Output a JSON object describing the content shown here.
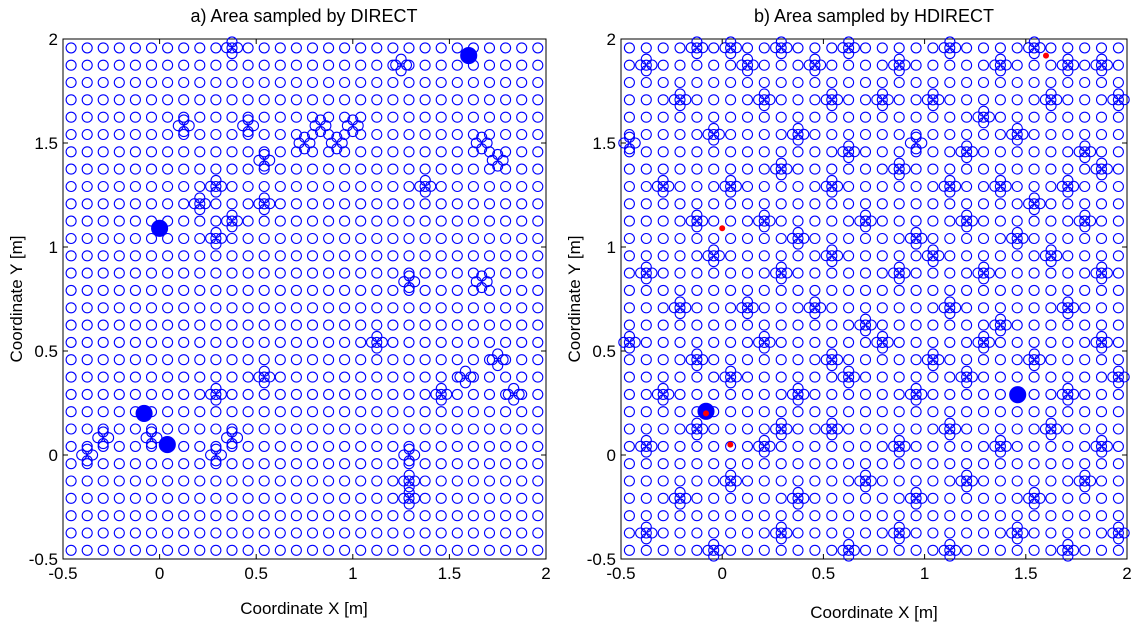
{
  "chart_data": [
    {
      "type": "scatter",
      "title": "a) Area sampled by DIRECT",
      "xlabel": "Coordinate X [m]",
      "ylabel": "Coordinate Y [m]",
      "xlim": [
        -0.5,
        2
      ],
      "ylim": [
        -0.5,
        2
      ],
      "xticks": [
        "-0.5",
        "0",
        "0.5",
        "1",
        "1.5",
        "2"
      ],
      "yticks": [
        "-0.5",
        "0",
        "0.5",
        "1",
        "1.5",
        "2"
      ],
      "marker": "circle",
      "marker_color": "#0000ff",
      "grid": {
        "x0": -0.4583,
        "dx": 0.0833,
        "nx": 30,
        "y0": -0.4583,
        "dy": 0.0833,
        "ny": 30
      },
      "refinements": [
        {
          "x": 0.375,
          "y": 1.958
        },
        {
          "x": 1.25,
          "y": 1.875
        },
        {
          "x": 0.125,
          "y": 1.583
        },
        {
          "x": 0.458,
          "y": 1.583
        },
        {
          "x": 0.833,
          "y": 1.583
        },
        {
          "x": 1.0,
          "y": 1.583
        },
        {
          "x": 0.75,
          "y": 1.5
        },
        {
          "x": 0.917,
          "y": 1.5
        },
        {
          "x": 1.667,
          "y": 1.5
        },
        {
          "x": 0.542,
          "y": 1.417
        },
        {
          "x": 1.75,
          "y": 1.417
        },
        {
          "x": 0.292,
          "y": 1.292
        },
        {
          "x": 1.375,
          "y": 1.292
        },
        {
          "x": 0.208,
          "y": 1.208
        },
        {
          "x": 0.542,
          "y": 1.208
        },
        {
          "x": 0.375,
          "y": 1.125
        },
        {
          "x": 0.292,
          "y": 1.042
        },
        {
          "x": 1.292,
          "y": 0.833
        },
        {
          "x": 1.667,
          "y": 0.833
        },
        {
          "x": 1.125,
          "y": 0.542
        },
        {
          "x": 1.75,
          "y": 0.458
        },
        {
          "x": 0.542,
          "y": 0.375
        },
        {
          "x": 1.583,
          "y": 0.375
        },
        {
          "x": 0.292,
          "y": 0.292
        },
        {
          "x": 1.458,
          "y": 0.292
        },
        {
          "x": 1.833,
          "y": 0.292
        },
        {
          "x": -0.292,
          "y": 0.083
        },
        {
          "x": 0.375,
          "y": 0.083
        },
        {
          "x": -0.042,
          "y": 0.083
        },
        {
          "x": -0.375,
          "y": 0.0
        },
        {
          "x": 0.292,
          "y": 0.0
        },
        {
          "x": 1.292,
          "y": 0.0
        },
        {
          "x": 1.292,
          "y": -0.125
        },
        {
          "x": 1.292,
          "y": -0.208
        }
      ],
      "clusters": [
        {
          "x": 1.6,
          "y": 1.92
        },
        {
          "x": 0.0,
          "y": 1.09
        },
        {
          "x": -0.08,
          "y": 0.2
        },
        {
          "x": 0.04,
          "y": 0.05
        }
      ],
      "best_points": []
    },
    {
      "type": "scatter",
      "title": "b) Area sampled by HDIRECT",
      "xlabel": "Coordinate X [m]",
      "ylabel": "Coordinate Y [m]",
      "xlim": [
        -0.5,
        2
      ],
      "ylim": [
        -0.5,
        2
      ],
      "xticks": [
        "-0.5",
        "0",
        "0.5",
        "1",
        "1.5",
        "2"
      ],
      "yticks": [
        "-0.5",
        "0",
        "0.5",
        "1",
        "1.5",
        "2"
      ],
      "marker": "circle",
      "marker_color": "#0000ff",
      "grid": {
        "x0": -0.4583,
        "dx": 0.0833,
        "nx": 30,
        "y0": -0.4583,
        "dy": 0.0833,
        "ny": 30
      },
      "refinements": [
        {
          "x": -0.375,
          "y": 1.875
        },
        {
          "x": -0.125,
          "y": 1.958
        },
        {
          "x": 0.042,
          "y": 1.958
        },
        {
          "x": 0.125,
          "y": 1.875
        },
        {
          "x": 0.292,
          "y": 1.958
        },
        {
          "x": 0.458,
          "y": 1.875
        },
        {
          "x": 0.625,
          "y": 1.958
        },
        {
          "x": 0.875,
          "y": 1.875
        },
        {
          "x": 1.125,
          "y": 1.958
        },
        {
          "x": 1.375,
          "y": 1.875
        },
        {
          "x": 1.542,
          "y": 1.958
        },
        {
          "x": 1.708,
          "y": 1.875
        },
        {
          "x": 1.875,
          "y": 1.875
        },
        {
          "x": -0.208,
          "y": 1.708
        },
        {
          "x": 0.208,
          "y": 1.708
        },
        {
          "x": 0.542,
          "y": 1.708
        },
        {
          "x": 0.792,
          "y": 1.708
        },
        {
          "x": 1.042,
          "y": 1.708
        },
        {
          "x": 1.292,
          "y": 1.625
        },
        {
          "x": 1.625,
          "y": 1.708
        },
        {
          "x": 1.958,
          "y": 1.708
        },
        {
          "x": -0.458,
          "y": 1.5
        },
        {
          "x": -0.042,
          "y": 1.542
        },
        {
          "x": 0.375,
          "y": 1.542
        },
        {
          "x": 0.625,
          "y": 1.458
        },
        {
          "x": 0.958,
          "y": 1.5
        },
        {
          "x": 1.208,
          "y": 1.458
        },
        {
          "x": 1.458,
          "y": 1.542
        },
        {
          "x": 1.792,
          "y": 1.458
        },
        {
          "x": -0.292,
          "y": 1.292
        },
        {
          "x": 0.042,
          "y": 1.292
        },
        {
          "x": 0.292,
          "y": 1.375
        },
        {
          "x": 0.542,
          "y": 1.292
        },
        {
          "x": 0.875,
          "y": 1.375
        },
        {
          "x": 1.125,
          "y": 1.292
        },
        {
          "x": 1.375,
          "y": 1.292
        },
        {
          "x": 1.542,
          "y": 1.208
        },
        {
          "x": 1.708,
          "y": 1.292
        },
        {
          "x": 1.875,
          "y": 1.375
        },
        {
          "x": -0.125,
          "y": 1.125
        },
        {
          "x": 0.208,
          "y": 1.125
        },
        {
          "x": 0.375,
          "y": 1.042
        },
        {
          "x": 0.708,
          "y": 1.125
        },
        {
          "x": 0.958,
          "y": 1.042
        },
        {
          "x": 1.208,
          "y": 1.125
        },
        {
          "x": 1.458,
          "y": 1.042
        },
        {
          "x": 1.792,
          "y": 1.125
        },
        {
          "x": -0.375,
          "y": 0.875
        },
        {
          "x": -0.042,
          "y": 0.958
        },
        {
          "x": 0.292,
          "y": 0.875
        },
        {
          "x": 0.542,
          "y": 0.958
        },
        {
          "x": 0.875,
          "y": 0.875
        },
        {
          "x": 1.042,
          "y": 0.958
        },
        {
          "x": 1.292,
          "y": 0.875
        },
        {
          "x": 1.625,
          "y": 0.958
        },
        {
          "x": 1.875,
          "y": 0.875
        },
        {
          "x": -0.208,
          "y": 0.708
        },
        {
          "x": 0.125,
          "y": 0.708
        },
        {
          "x": 0.458,
          "y": 0.708
        },
        {
          "x": 0.708,
          "y": 0.625
        },
        {
          "x": 1.125,
          "y": 0.708
        },
        {
          "x": 1.375,
          "y": 0.625
        },
        {
          "x": 1.708,
          "y": 0.708
        },
        {
          "x": -0.458,
          "y": 0.542
        },
        {
          "x": -0.125,
          "y": 0.458
        },
        {
          "x": 0.208,
          "y": 0.542
        },
        {
          "x": 0.542,
          "y": 0.458
        },
        {
          "x": 0.792,
          "y": 0.542
        },
        {
          "x": 1.042,
          "y": 0.458
        },
        {
          "x": 1.292,
          "y": 0.542
        },
        {
          "x": 1.542,
          "y": 0.458
        },
        {
          "x": 1.875,
          "y": 0.542
        },
        {
          "x": -0.292,
          "y": 0.292
        },
        {
          "x": 0.042,
          "y": 0.375
        },
        {
          "x": 0.375,
          "y": 0.292
        },
        {
          "x": 0.625,
          "y": 0.375
        },
        {
          "x": 0.958,
          "y": 0.292
        },
        {
          "x": 1.208,
          "y": 0.375
        },
        {
          "x": 1.708,
          "y": 0.292
        },
        {
          "x": 1.958,
          "y": 0.375
        },
        {
          "x": -0.375,
          "y": 0.042
        },
        {
          "x": -0.125,
          "y": 0.125
        },
        {
          "x": 0.208,
          "y": 0.042
        },
        {
          "x": 0.292,
          "y": 0.125
        },
        {
          "x": 0.542,
          "y": 0.125
        },
        {
          "x": 0.875,
          "y": 0.042
        },
        {
          "x": 1.125,
          "y": 0.125
        },
        {
          "x": 1.375,
          "y": 0.042
        },
        {
          "x": 1.625,
          "y": 0.125
        },
        {
          "x": 1.875,
          "y": 0.042
        },
        {
          "x": -0.208,
          "y": -0.208
        },
        {
          "x": 0.042,
          "y": -0.125
        },
        {
          "x": 0.375,
          "y": -0.208
        },
        {
          "x": 0.708,
          "y": -0.125
        },
        {
          "x": 0.958,
          "y": -0.208
        },
        {
          "x": 1.208,
          "y": -0.125
        },
        {
          "x": 1.542,
          "y": -0.208
        },
        {
          "x": 1.792,
          "y": -0.125
        },
        {
          "x": -0.375,
          "y": -0.375
        },
        {
          "x": -0.042,
          "y": -0.458
        },
        {
          "x": 0.292,
          "y": -0.375
        },
        {
          "x": 0.625,
          "y": -0.458
        },
        {
          "x": 0.875,
          "y": -0.375
        },
        {
          "x": 1.125,
          "y": -0.458
        },
        {
          "x": 1.458,
          "y": -0.375
        },
        {
          "x": 1.708,
          "y": -0.458
        },
        {
          "x": 1.958,
          "y": -0.375
        }
      ],
      "clusters": [
        {
          "x": -0.08,
          "y": 0.21
        },
        {
          "x": 1.46,
          "y": 0.29
        }
      ],
      "best_points": [
        {
          "x": 1.6,
          "y": 1.92
        },
        {
          "x": 0.0,
          "y": 1.09
        },
        {
          "x": -0.08,
          "y": 0.2
        },
        {
          "x": 0.04,
          "y": 0.05
        }
      ]
    }
  ]
}
